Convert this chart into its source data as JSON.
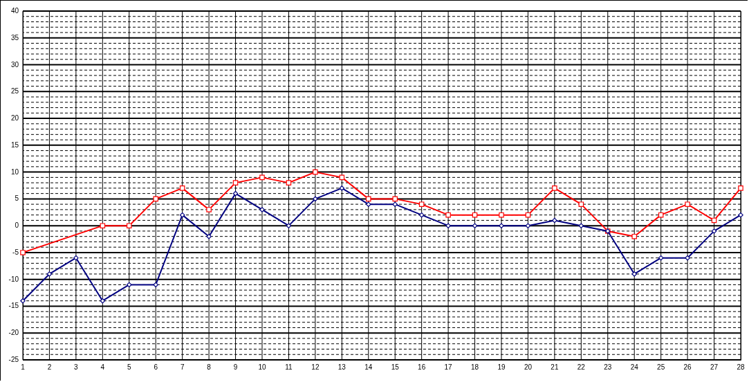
{
  "chart_data": {
    "type": "line",
    "x": [
      1,
      2,
      3,
      4,
      5,
      6,
      7,
      8,
      9,
      10,
      11,
      12,
      13,
      14,
      15,
      16,
      17,
      18,
      19,
      20,
      21,
      22,
      23,
      24,
      25,
      26,
      27,
      28
    ],
    "series": [
      {
        "color": "#ff0000",
        "marker": "square",
        "values": [
          -5,
          null,
          null,
          0,
          0,
          5,
          7,
          3,
          8,
          9,
          8,
          10,
          9,
          5,
          5,
          4,
          2,
          2,
          2,
          2,
          7,
          4,
          -1,
          -2,
          2,
          4,
          1,
          7
        ]
      },
      {
        "color": "#000080",
        "marker": "diamond",
        "values": [
          -14,
          -9,
          -6,
          -14,
          -11,
          -11,
          2,
          -2,
          6,
          3,
          0,
          5,
          7,
          4,
          4,
          2,
          0,
          0,
          0,
          0,
          1,
          0,
          -1,
          -9,
          -6,
          -6,
          -1,
          2
        ]
      }
    ],
    "xlim": [
      1,
      28
    ],
    "xticks": [
      1,
      2,
      3,
      4,
      5,
      6,
      7,
      8,
      9,
      10,
      11,
      12,
      13,
      14,
      15,
      16,
      17,
      18,
      19,
      20,
      21,
      22,
      23,
      24,
      25,
      26,
      27,
      28
    ],
    "ylim": [
      -25,
      40
    ],
    "yticks": [
      -25,
      {
        "value": -24,
        "label": null
      },
      {
        "value": -23,
        "label": null
      },
      {
        "value": -22,
        "label": null
      },
      {
        "value": -21,
        "label": null
      },
      -20,
      {
        "value": -19,
        "label": null
      },
      {
        "value": -18,
        "label": null
      },
      {
        "value": -17,
        "label": null
      },
      {
        "value": -16,
        "label": null
      },
      -15,
      {
        "value": -14,
        "label": null
      },
      {
        "value": -13,
        "label": null
      },
      {
        "value": -12,
        "label": null
      },
      {
        "value": -11,
        "label": null
      },
      -10,
      {
        "value": -9,
        "label": null
      },
      {
        "value": -8,
        "label": null
      },
      {
        "value": -7,
        "label": null
      },
      {
        "value": -6,
        "label": null
      },
      -5,
      {
        "value": -4,
        "label": null
      },
      {
        "value": -3,
        "label": null
      },
      {
        "value": -2,
        "label": null
      },
      {
        "value": -1,
        "label": null
      },
      0,
      {
        "value": 1,
        "label": null
      },
      {
        "value": 2,
        "label": null
      },
      {
        "value": 3,
        "label": null
      },
      {
        "value": 4,
        "label": null
      },
      5,
      {
        "value": 6,
        "label": null
      },
      {
        "value": 7,
        "label": null
      },
      {
        "value": 8,
        "label": null
      },
      {
        "value": 9,
        "label": null
      },
      10,
      {
        "value": 11,
        "label": null
      },
      {
        "value": 12,
        "label": null
      },
      {
        "value": 13,
        "label": null
      },
      {
        "value": 14,
        "label": null
      },
      15,
      {
        "value": 16,
        "label": null
      },
      {
        "value": 17,
        "label": null
      },
      {
        "value": 18,
        "label": null
      },
      {
        "value": 19,
        "label": null
      },
      20,
      {
        "value": 21,
        "label": null
      },
      {
        "value": 22,
        "label": null
      },
      {
        "value": 23,
        "label": null
      },
      {
        "value": 24,
        "label": null
      },
      25,
      {
        "value": 26,
        "label": null
      },
      {
        "value": 27,
        "label": null
      },
      {
        "value": 28,
        "label": null
      },
      {
        "value": 29,
        "label": null
      },
      30,
      {
        "value": 31,
        "label": null
      },
      {
        "value": 32,
        "label": null
      },
      {
        "value": 33,
        "label": null
      },
      {
        "value": 34,
        "label": null
      },
      35,
      {
        "value": 36,
        "label": null
      },
      {
        "value": 37,
        "label": null
      },
      {
        "value": 38,
        "label": null
      },
      {
        "value": 39,
        "label": null
      },
      40
    ],
    "grid": true,
    "line_style": "solid"
  }
}
